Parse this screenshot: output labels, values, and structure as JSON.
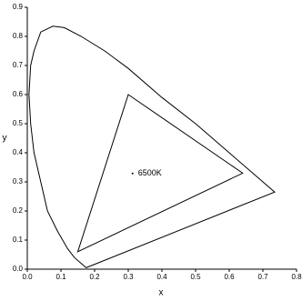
{
  "chart_data": {
    "type": "line",
    "x_label": "x",
    "y_label": "y",
    "xlim": [
      0,
      0.8
    ],
    "ylim": [
      0,
      0.9
    ],
    "xticks": [
      {
        "value": 0,
        "label": "0.0"
      },
      0.1,
      0.2,
      0.3,
      0.4,
      0.5,
      0.6,
      0.7,
      0.8
    ],
    "yticks": [
      {
        "value": 0,
        "label": "0.0"
      },
      0.1,
      0.2,
      0.3,
      0.4,
      0.5,
      0.6,
      0.7,
      0.8,
      0.9
    ],
    "grid": false,
    "series": [
      {
        "color": "#000000",
        "closed": true,
        "x": [
          0.175,
          0.16,
          0.14,
          0.12,
          0.09,
          0.06,
          0.04,
          0.02,
          0.01,
          0.005,
          0.01,
          0.02,
          0.04,
          0.076,
          0.11,
          0.16,
          0.23,
          0.3,
          0.4,
          0.5,
          0.6,
          0.7,
          0.735
        ],
        "values": [
          0.005,
          0.02,
          0.04,
          0.07,
          0.13,
          0.2,
          0.3,
          0.4,
          0.5,
          0.6,
          0.7,
          0.75,
          0.815,
          0.835,
          0.83,
          0.8,
          0.75,
          0.69,
          0.59,
          0.5,
          0.4,
          0.3,
          0.265
        ]
      },
      {
        "color": "#000000",
        "closed": true,
        "x": [
          0.64,
          0.3,
          0.15
        ],
        "values": [
          0.33,
          0.6,
          0.06
        ]
      }
    ],
    "annotations": [
      {
        "text": "6500K",
        "x": 0.3127,
        "y": 0.329
      }
    ]
  }
}
